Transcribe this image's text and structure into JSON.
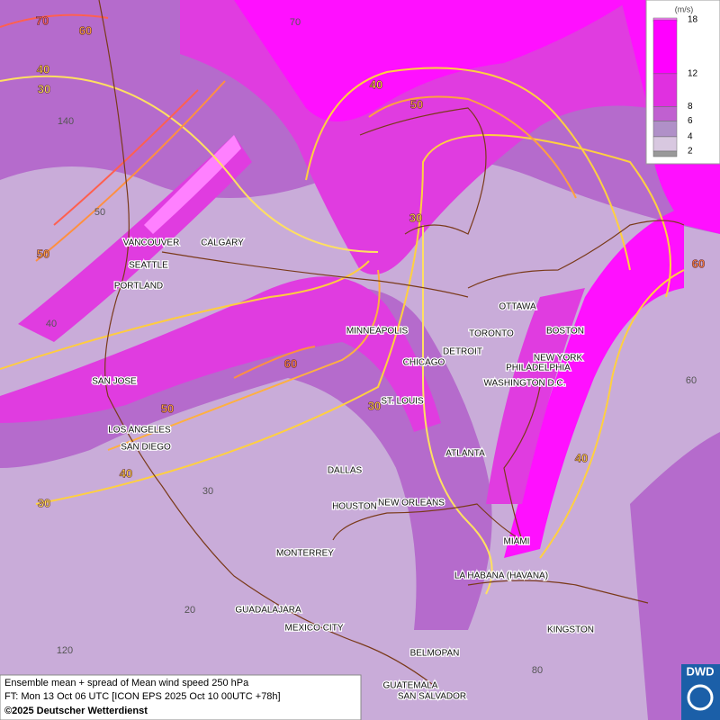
{
  "legend": {
    "unit": "(m/s)",
    "levels": [
      18,
      12,
      8,
      6,
      4,
      2
    ],
    "colors": [
      "#ff80ff",
      "#ff00ff",
      "#e030e0",
      "#c060d0",
      "#b090c8",
      "#d8c8e0"
    ]
  },
  "cities": [
    "VANCOUVER",
    "CALGARY",
    "SEATTLE",
    "PORTLAND",
    "SAN JOSE",
    "LOS ANGELES",
    "SAN DIEGO",
    "MINNEAPOLIS",
    "CHICAGO",
    "DETROIT",
    "TORONTO",
    "OTTAWA",
    "BOSTON",
    "NEW YORK",
    "PHILADELPHIA",
    "WASHINGTON D.C.",
    "ST. LOUIS",
    "ATLANTA",
    "DALLAS",
    "HOUSTON",
    "NEW ORLEANS",
    "MIAMI",
    "MONTERREY",
    "LA HABANA (HAVANA)",
    "GUADALAJARA",
    "MEXICO CITY",
    "KINGSTON",
    "BELMOPAN",
    "GUATEMALA",
    "SAN SALVADOR"
  ],
  "contour_labels": [
    70,
    60,
    40,
    30,
    40,
    50,
    30,
    50,
    60,
    50,
    30,
    40,
    30,
    40,
    60
  ],
  "grid_labels": [
    70,
    140,
    50,
    40,
    60,
    30,
    20,
    120,
    80
  ],
  "footer": {
    "line1": "Ensemble mean + spread of Mean wind speed 250 hPa",
    "line2": "FT: Mon 13 Oct 06 UTC [ICON EPS 2025 Oct 10 00UTC +78h]",
    "line3": "©2025 Deutscher Wetterdienst"
  },
  "logo": "DWD"
}
